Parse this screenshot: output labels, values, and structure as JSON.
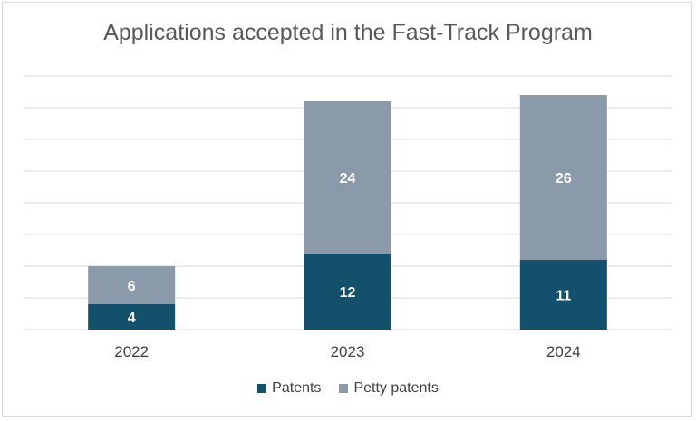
{
  "chart_data": {
    "type": "bar",
    "stacked": true,
    "title": "Applications accepted in the Fast-Track Program",
    "categories": [
      "2022",
      "2023",
      "2024"
    ],
    "series": [
      {
        "name": "Patents",
        "values": [
          4,
          12,
          11
        ],
        "color": "#12506b"
      },
      {
        "name": "Petty patents",
        "values": [
          6,
          24,
          26
        ],
        "color": "#8a9aaa"
      }
    ],
    "xlabel": "",
    "ylabel": "",
    "ylim": [
      0,
      40
    ],
    "grid": true,
    "legend": "bottom"
  }
}
